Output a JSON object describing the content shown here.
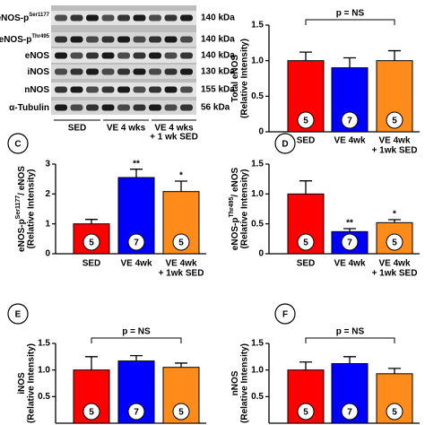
{
  "blot": {
    "rows": [
      {
        "label": [
          "eNOS-p",
          "Ser1177"
        ],
        "kda": "140 kDa"
      },
      {
        "label": [
          "eNOS-p",
          "Thr495"
        ],
        "kda": "140 kDa"
      },
      {
        "label": [
          "eNOS"
        ],
        "kda": "140 kDa"
      },
      {
        "label": [
          "iNOS"
        ],
        "kda": "130 kDa"
      },
      {
        "label": [
          "nNOS"
        ],
        "kda": "155 kDa"
      },
      {
        "label": [
          "α-Tubulin"
        ],
        "kda": "56 kDa"
      }
    ],
    "groups": [
      [
        "SED"
      ],
      [
        "VE 4 wks"
      ],
      [
        "VE 4 wks",
        "+ 1 wk SED"
      ]
    ]
  },
  "chart_data": [
    {
      "type": "bar",
      "ylabel": [
        "Total eNOS"
      ],
      "ylabel2": "(Relative Intensity)",
      "categories": [
        [
          "SED"
        ],
        [
          "VE 4wk"
        ],
        [
          "VE 4wk",
          "+ 1wk SED"
        ]
      ],
      "values": [
        1.0,
        0.9,
        1.0
      ],
      "errors": [
        0.12,
        0.14,
        0.14
      ],
      "n": [
        5,
        7,
        5
      ],
      "colors": [
        "#ff0000",
        "#0000ff",
        "#ff8c1a"
      ],
      "annotation": "p = NS",
      "ylim": [
        0,
        1.5
      ],
      "yticks": [
        0,
        0.5,
        {
          "value": 1,
          "label": "1.0"
        },
        1.5
      ]
    },
    {
      "type": "bar",
      "panel": "C",
      "ylabel": [
        "eNOS-p",
        "Ser1177",
        "/ eNOS"
      ],
      "ylabel2": "(Relative Intensity)",
      "categories": [
        [
          "SED"
        ],
        [
          "VE 4wk"
        ],
        [
          "VE 4wk",
          "+ 1wk SED"
        ]
      ],
      "values": [
        1.0,
        2.55,
        2.08
      ],
      "errors": [
        0.15,
        0.28,
        0.35
      ],
      "n": [
        5,
        7,
        5
      ],
      "sig": [
        null,
        "**",
        "*"
      ],
      "colors": [
        "#ff0000",
        "#0000ff",
        "#ff8c1a"
      ],
      "ylim": [
        0,
        3
      ],
      "yticks": [
        0,
        1,
        2,
        3
      ]
    },
    {
      "type": "bar",
      "panel": "D",
      "ylabel": [
        "eNOS-p",
        "Thr495",
        "/ eNOS"
      ],
      "ylabel2": "(Relative Intensity)",
      "categories": [
        [
          "SED"
        ],
        [
          "VE 4wk"
        ],
        [
          "VE 4wk",
          "+ 1wk SED"
        ]
      ],
      "values": [
        1.0,
        0.37,
        0.52
      ],
      "errors": [
        0.22,
        0.05,
        0.05
      ],
      "n": [
        5,
        7,
        5
      ],
      "sig": [
        null,
        "**",
        "*"
      ],
      "colors": [
        "#ff0000",
        "#0000ff",
        "#ff8c1a"
      ],
      "ylim": [
        0,
        1.5
      ],
      "yticks": [
        0,
        0.5,
        {
          "value": 1,
          "label": "1.0"
        },
        1.5
      ]
    },
    {
      "type": "bar",
      "panel": "E",
      "ylabel": [
        "iNOS"
      ],
      "ylabel2": "(Relative Intensity)",
      "values": [
        1.0,
        1.17,
        1.05
      ],
      "errors": [
        0.25,
        0.1,
        0.08
      ],
      "n": [
        5,
        7,
        5
      ],
      "colors": [
        "#ff0000",
        "#0000ff",
        "#ff8c1a"
      ],
      "annotation": "p = NS",
      "ylim": [
        0,
        1.5
      ],
      "yticks": [
        0.5,
        {
          "value": 1,
          "label": "1.0"
        },
        1.5
      ]
    },
    {
      "type": "bar",
      "panel": "F",
      "ylabel": [
        "nNOS"
      ],
      "ylabel2": "(Relative Intensity)",
      "values": [
        1.0,
        1.12,
        0.93
      ],
      "errors": [
        0.15,
        0.13,
        0.1
      ],
      "n": [
        5,
        7,
        5
      ],
      "colors": [
        "#ff0000",
        "#0000ff",
        "#ff8c1a"
      ],
      "annotation": "p = NS",
      "ylim": [
        0,
        1.5
      ],
      "yticks": [
        0.5,
        {
          "value": 1,
          "label": "1.0"
        },
        1.5
      ]
    }
  ]
}
